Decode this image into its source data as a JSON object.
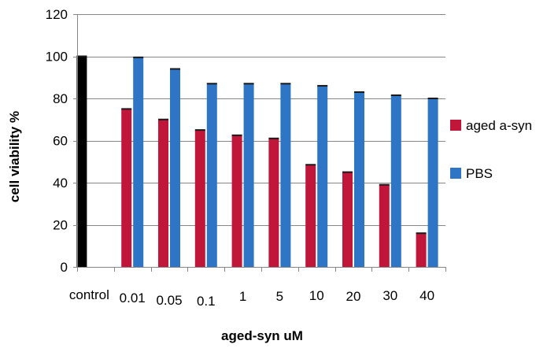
{
  "chart_data": {
    "type": "bar",
    "title": "",
    "xlabel": "aged-syn  uM",
    "ylabel": "cell viability %",
    "categories": [
      "control",
      "0.01",
      "0.05",
      "0.1",
      "1",
      "5",
      "10",
      "20",
      "30",
      "40"
    ],
    "series": [
      {
        "name": "",
        "color": "#000000",
        "values": [
          100,
          null,
          null,
          null,
          null,
          null,
          null,
          null,
          null,
          null
        ]
      },
      {
        "name": "aged a-syn",
        "color": "#c0163a",
        "values": [
          null,
          75,
          70,
          65,
          62.5,
          61,
          48.5,
          45,
          39,
          16
        ]
      },
      {
        "name": "PBS",
        "color": "#2e75c6",
        "values": [
          null,
          99.5,
          94,
          87,
          87,
          87,
          86,
          83,
          81.5,
          80
        ]
      }
    ],
    "ylim": [
      0,
      120
    ],
    "yticks": [
      0,
      20,
      40,
      60,
      80,
      100,
      120
    ],
    "grid": true,
    "legend_position": "right"
  }
}
